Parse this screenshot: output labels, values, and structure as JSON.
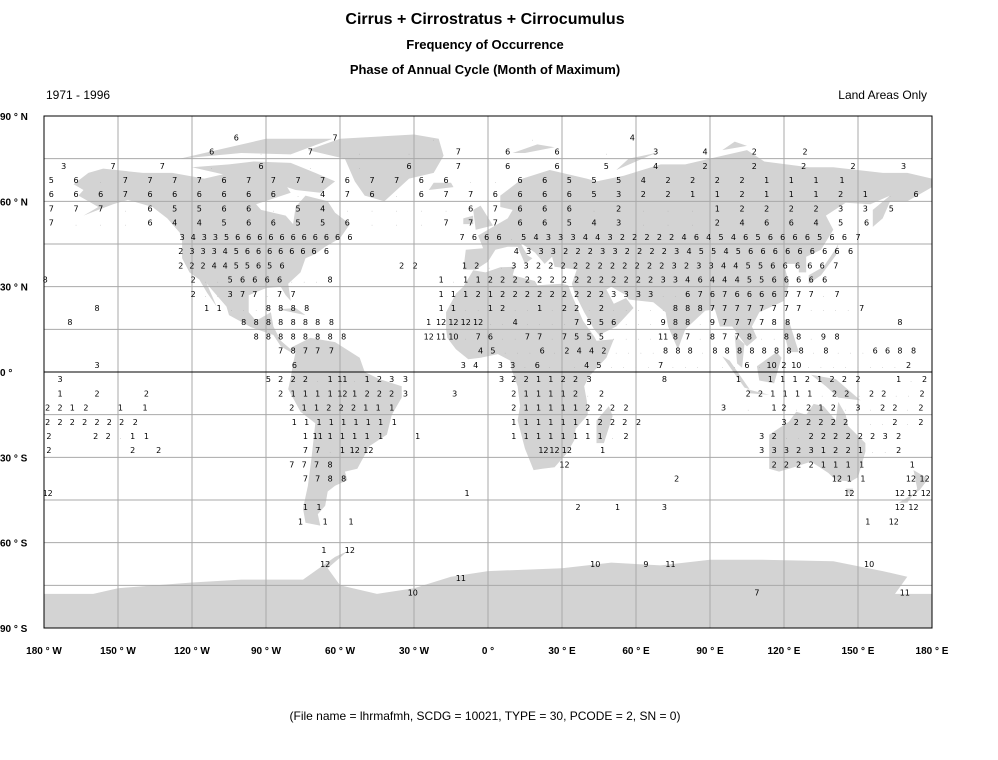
{
  "header": {
    "title": "Cirrus + Cirrostratus + Cirrocumulus",
    "subtitle1": "Frequency of Occurrence",
    "subtitle2": "Phase of Annual Cycle (Month of Maximum)",
    "period": "1971 - 1996",
    "scope": "Land Areas Only"
  },
  "footer": "(File name = lhrmafmh, SCDG = 10021, TYPE = 30, PCODE = 2, SN = 0)",
  "colors": {
    "land": "#d3d3d3",
    "grid": "#a9a9a9",
    "text": "#000000"
  },
  "chart_data": {
    "type": "map",
    "projection": "equirectangular",
    "xlim": [
      -180,
      180
    ],
    "ylim": [
      -90,
      90
    ],
    "grid": true,
    "lat_ticks": [
      "90 ° N",
      "60 ° N",
      "30 ° N",
      "0 °",
      "30 ° S",
      "60 ° S",
      "90 ° S"
    ],
    "lon_ticks": [
      "180 ° W",
      "150 ° W",
      "120 ° W",
      "90 ° W",
      "60 ° W",
      "30 ° W",
      "0 °",
      "30 ° E",
      "60 ° E",
      "90 ° E",
      "120 ° E",
      "150 ° E",
      "180 ° E"
    ],
    "rows": [
      {
        "lat": 82.5,
        "segments": [
          {
            "lon": -101.5,
            "step": 40,
            "values": "6 7 . . 4"
          }
        ]
      },
      {
        "lat": 77.5,
        "segments": [
          {
            "lon": -111.5,
            "step": 20,
            "values": "6 . 7 . . 7 6 6 . 3 4 2 2"
          }
        ]
      },
      {
        "lat": 72.5,
        "segments": [
          {
            "lon": -171.5,
            "step": 20,
            "values": "3 7 7 . 6 . . 6 7 6 6 5 4 2 2 2 2 3"
          }
        ]
      },
      {
        "lat": 67.5,
        "segments": [
          {
            "lon": -176.5,
            "step": 10,
            "values": "5 6 . 7 7 7 7 6 7 7 7 7 6 7 7 6 6 . . 6 6 5 5 5 4 2 2 2 2 1 1 1 1"
          }
        ]
      },
      {
        "lat": 62.5,
        "segments": [
          {
            "lon": -176.5,
            "step": 10,
            "values": "6 6 6 7 6 6 6 6 6 6 . 4 7 6 . 6 7 7 6 6 6 6 5 3 2 2 1 1 2 1 1 1 2 1 . 6"
          }
        ]
      },
      {
        "lat": 57.5,
        "segments": [
          {
            "lon": -176.5,
            "step": 10,
            "values": "7 7 7 . 6 5 5 6 6 . 5 4 . . . . . 6 7 6 6 6 . 2 . . . 1 2 2 2 2 3 3 5"
          }
        ]
      },
      {
        "lat": 52.5,
        "segments": [
          {
            "lon": -176.5,
            "step": 10,
            "values": "7 . . . 6 4 4 5 6 6 5 5 6 . . . 7 7 7 6 6 5 4 3 . . . 2 4 6 6 4 5 6"
          }
        ]
      },
      {
        "lat": 47.5,
        "segments": [
          {
            "lon": -123.5,
            "step": 4.5,
            "values": "3 4 3 3 5 6 6 6 6 6 6 6 6 6 6 6"
          },
          {
            "lon": -10,
            "step": 5,
            "values": "7 6 6 6 . 5 4 3 3 3 4 4 3 2 2 2 2 2 4 6 4 5 4 6 5 6 6 6 6 5 6 6 7"
          }
        ]
      },
      {
        "lat": 42.5,
        "segments": [
          {
            "lon": -124,
            "step": 4.5,
            "values": "2 3 3 3 4 5 6 6 6 6 6 6 6 6"
          },
          {
            "lon": 12,
            "step": 5,
            "values": "4 3 3 3 2 2 2 3 3 2 2 2 2 3 4 5 5 4 5 6 6 6 6 6 6 6 6 6"
          }
        ]
      },
      {
        "lat": 37.5,
        "segments": [
          {
            "lon": -124,
            "step": 4.5,
            "values": "2 2 2 4 4 5 5 6 5 6"
          },
          {
            "lon": -34.5,
            "step": 5,
            "values": "2 2"
          },
          {
            "lon": -9,
            "step": 5,
            "values": "1 2 . . 3 3 2 2 2 2 2 2 2 2 2 2 2 3 2 3 3 4 4 5 5 6 6 6 6 6 7"
          }
        ]
      },
      {
        "lat": 32.5,
        "segments": [
          {
            "lon": -179.5,
            "step": 5,
            "values": "8"
          },
          {
            "lon": -119,
            "step": 5,
            "values": "2 . . 5 6 6 6 6 . . . 8"
          },
          {
            "lon": -18.5,
            "step": 5,
            "values": "1 . 1 1 2 2 2 2 2 2 2 2 2 2 2 2 2 2 3 3 4 6 4 4 4 5 5 6 6 6 6 6"
          }
        ]
      },
      {
        "lat": 27.5,
        "segments": [
          {
            "lon": -119,
            "step": 5,
            "values": "2 . . 3 7 7 . 7 7"
          },
          {
            "lon": -18.5,
            "step": 5,
            "values": "1 1 1 2 1 2 2 2 2 2 2 2 2 2 3 3 3 3 . . 6 7 6 7 6 6 6 6 7 7 7 . 7"
          }
        ]
      },
      {
        "lat": 22.5,
        "segments": [
          {
            "lon": -158.5,
            "step": 5,
            "values": "8"
          },
          {
            "lon": -113.5,
            "step": 5,
            "values": "1 1 . . . 8 8 8 8"
          },
          {
            "lon": -18.5,
            "step": 5,
            "values": "1 1 . . 1 2 . . 1 . 2 2 . 2 . . . . . 8 8 8 7 7 7 7 7 7 7 7 . . . . 7"
          }
        ]
      },
      {
        "lat": 17.5,
        "segments": [
          {
            "lon": -169.5,
            "step": 5,
            "values": "8"
          },
          {
            "lon": -98.5,
            "step": 5,
            "values": "8 8 8 8 8 8 8 8"
          },
          {
            "lon": -23.5,
            "step": 5,
            "values": "1 12 12 12 12 . . 4 . . . . 7 5 5 6 . . . 9 8 8 . 9 7 7 7 7 8 8"
          },
          {
            "lon": 167,
            "step": 5,
            "values": "8"
          }
        ]
      },
      {
        "lat": 12.5,
        "segments": [
          {
            "lon": -93.5,
            "step": 5,
            "values": "8 8 8 8 8 8 8 8"
          },
          {
            "lon": -23.5,
            "step": 5,
            "values": "12 11 10 . 7 6 . . 7 7 . 7 5 5 5 . . . . 11 8 7 . 8 7 7 8 . . 8 8 . 9 8"
          }
        ]
      },
      {
        "lat": 7.5,
        "segments": [
          {
            "lon": -83.5,
            "step": 5,
            "values": "7 8 7 7 7"
          },
          {
            "lon": -2.5,
            "step": 5,
            "values": "4 5 . . . 6 . 2 4 4 2 . . . . 8 8 8 . 8 8 8 8 8 8 8 8 . 8 . . . 6 6 8 8"
          }
        ]
      },
      {
        "lat": 2.5,
        "segments": [
          {
            "lon": -158.5,
            "step": 5,
            "values": "3"
          },
          {
            "lon": -78.5,
            "step": 5,
            "values": "6"
          },
          {
            "lon": -9.5,
            "step": 5,
            "values": "3 4 . 3 3 . 6 . . . 4 5 . . . . 7 . . . . . . 6 . 10 2 10 . . . . . . . . 2"
          }
        ]
      },
      {
        "lat": -2.5,
        "segments": [
          {
            "lon": -173.5,
            "step": 5,
            "values": "3"
          },
          {
            "lon": -88.5,
            "step": 5,
            "values": "5 2 2 2 . 1 11 . 1 2 3 3"
          },
          {
            "lon": 6,
            "step": 5,
            "values": "3 2 2 1 1 2 2 3"
          },
          {
            "lon": 71.5,
            "step": 5,
            "values": "8"
          },
          {
            "lon": 101.5,
            "step": 5,
            "values": "1"
          },
          {
            "lon": 115,
            "step": 5,
            "values": "1 1 1 2 1 2 2 2"
          },
          {
            "lon": 167,
            "step": 5,
            "values": "1 . 2"
          }
        ]
      },
      {
        "lat": -7.5,
        "segments": [
          {
            "lon": -173.5,
            "step": 5,
            "values": "1"
          },
          {
            "lon": -158.5,
            "step": 5,
            "values": "2"
          },
          {
            "lon": -138.5,
            "step": 5,
            "values": "2"
          },
          {
            "lon": -83.5,
            "step": 5,
            "values": "2 1 1 1 1 12 1 2 2 2 3"
          },
          {
            "lon": -13.5,
            "step": 5,
            "values": "3"
          },
          {
            "lon": 11,
            "step": 5,
            "values": "2 1 1 1 1 2 . 2"
          },
          {
            "lon": 106,
            "step": 5,
            "values": "2 2 1 1 1 1 . 2 2 . 2 2 . . 2"
          }
        ]
      },
      {
        "lat": -12.5,
        "segments": [
          {
            "lon": -178,
            "step": 5,
            "values": "2 2 1 2"
          },
          {
            "lon": -148.5,
            "step": 9.5,
            "values": "1 1"
          },
          {
            "lon": -79,
            "step": 5,
            "values": "2 1 1 2 2 2 1 1 1"
          },
          {
            "lon": 11,
            "step": 5,
            "values": "2 1 1 1 1 1 2 2 2 2"
          },
          {
            "lon": 96,
            "step": 10,
            "values": "3 . 1"
          },
          {
            "lon": 120.5,
            "step": 5,
            "values": "2 . 2 1 2 . 3 . 2 2 . 2"
          }
        ]
      },
      {
        "lat": -17.5,
        "segments": [
          {
            "lon": -178,
            "step": 5,
            "values": "2 2 2 2 2 2 2 2"
          },
          {
            "lon": -78,
            "step": 5,
            "values": "1 1 1 1 1 1 1 1 1"
          },
          {
            "lon": 11,
            "step": 5,
            "values": "1 1 1 1 1 1 1 2 2 2 2"
          },
          {
            "lon": 120.5,
            "step": 5,
            "values": "3 2 2 2 2 2 . . . 2 . 2"
          }
        ]
      },
      {
        "lat": -22.5,
        "segments": [
          {
            "lon": -178,
            "step": 5,
            "values": "2"
          },
          {
            "lon": -158.5,
            "step": 5,
            "values": "2 2 . 1 1"
          },
          {
            "lon": -73.5,
            "step": 5,
            "values": "1 11 1 1 1 1 1"
          },
          {
            "lon": -28.5,
            "step": 5,
            "values": "1"
          },
          {
            "lon": 11,
            "step": 5,
            "values": "1 1 1 1 1 1 1 1 . 2"
          },
          {
            "lon": 111.5,
            "step": 5,
            "values": "3 2 . . 2 2 2 2 2 2 3 2"
          }
        ]
      },
      {
        "lat": -27.5,
        "segments": [
          {
            "lon": -178,
            "step": 5,
            "values": "2"
          },
          {
            "lon": -143.5,
            "step": 10,
            "values": "2 2"
          },
          {
            "lon": -73.5,
            "step": 5,
            "values": "7 7 . 1 12 12"
          },
          {
            "lon": 23,
            "step": 4.5,
            "values": "12 12 12"
          },
          {
            "lon": 46.5,
            "step": 5,
            "values": "1"
          },
          {
            "lon": 111.5,
            "step": 5,
            "values": "3 3 3 2 3 1 2 2 1 . . 2"
          }
        ]
      },
      {
        "lat": -32.5,
        "segments": [
          {
            "lon": -79,
            "step": 5,
            "values": "7 7 7 8"
          },
          {
            "lon": 31,
            "step": 5,
            "values": "12"
          },
          {
            "lon": 116.5,
            "step": 5,
            "values": "2 2 2 2 1 1 1 1"
          },
          {
            "lon": 172,
            "step": 5,
            "values": "1"
          }
        ]
      },
      {
        "lat": -37.5,
        "segments": [
          {
            "lon": -73.5,
            "step": 5,
            "values": "7 7 8 8"
          },
          {
            "lon": 76.5,
            "step": 5,
            "values": "2"
          },
          {
            "lon": 142,
            "step": 5,
            "values": "12 1 1"
          },
          {
            "lon": 172,
            "step": 5,
            "values": "12 12"
          }
        ]
      },
      {
        "lat": -42.5,
        "segments": [
          {
            "lon": -178.5,
            "step": 5,
            "values": "12"
          },
          {
            "lon": -8.5,
            "step": 5,
            "values": "1"
          },
          {
            "lon": 146.5,
            "step": 5,
            "values": "12"
          },
          {
            "lon": 167.5,
            "step": 5,
            "values": "12 12 12"
          }
        ]
      },
      {
        "lat": -47.5,
        "segments": [
          {
            "lon": -73.5,
            "step": 5,
            "values": "1 1"
          },
          {
            "lon": 37,
            "step": 15.5,
            "values": "2 1"
          },
          {
            "lon": 71.5,
            "step": 5,
            "values": "3"
          },
          {
            "lon": 167.5,
            "step": 5,
            "values": "12 12"
          }
        ]
      },
      {
        "lat": -52.5,
        "segments": [
          {
            "lon": -75.5,
            "step": 10,
            "values": "1 1 1"
          },
          {
            "lon": 154.5,
            "step": 10,
            "values": "1 12"
          }
        ]
      },
      {
        "lat": -62.5,
        "segments": [
          {
            "lon": -66,
            "step": 10,
            "values": "1 12"
          }
        ]
      },
      {
        "lat": -67.5,
        "segments": [
          {
            "lon": -66,
            "step": 5,
            "values": "12"
          },
          {
            "lon": 44,
            "step": 20,
            "values": "10 9"
          },
          {
            "lon": 74,
            "step": 5,
            "values": "11"
          },
          {
            "lon": 154.5,
            "step": 5,
            "values": "10"
          }
        ]
      },
      {
        "lat": -72.5,
        "segments": [
          {
            "lon": -11,
            "step": 5,
            "values": "11"
          }
        ]
      },
      {
        "lat": -77.5,
        "segments": [
          {
            "lon": -30.5,
            "step": 5,
            "values": "10"
          },
          {
            "lon": 109,
            "step": 5,
            "values": "7"
          },
          {
            "lon": 169,
            "step": 5,
            "values": "11"
          }
        ]
      }
    ]
  }
}
